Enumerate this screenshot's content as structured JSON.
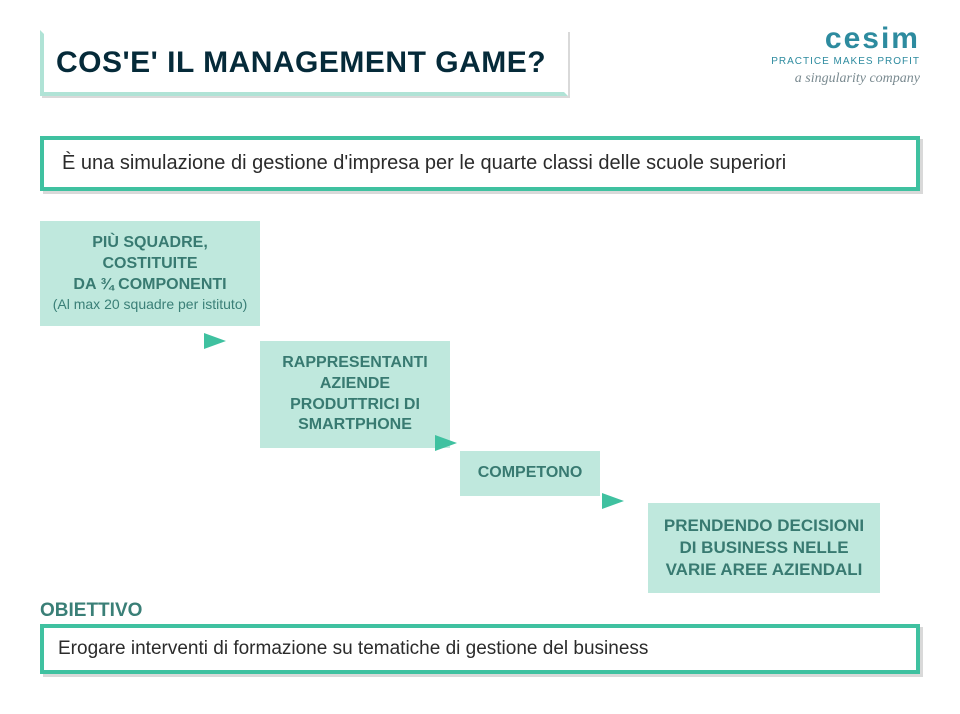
{
  "title": "COS'E' IL MANAGEMENT GAME?",
  "brand": {
    "name": "cesim",
    "tagline": "PRACTICE MAKES PROFIT",
    "sub": "a singularity company"
  },
  "subtitle": "È una simulazione di gestione d'impresa per le quarte classi delle scuole superiori",
  "flow": {
    "box1_line1": "PIÙ SQUADRE, COSTITUITE",
    "box1_line2": "DA ¾ COMPONENTI",
    "box1_line3": "(Al max 20 squadre per istituto)",
    "box2": "RAPPRESENTANTI AZIENDE PRODUTTRICI DI SMARTPHONE",
    "box3": "COMPETONO",
    "box4": "PRENDENDO DECISIONI DI BUSINESS NELLE VARIE AREE AZIENDALI"
  },
  "objective": {
    "label": "OBIETTIVO",
    "text": "Erogare interventi di formazione su tematiche di gestione del business"
  },
  "colors": {
    "accent": "#3fc1a0",
    "box_bg": "#bfe8dd",
    "box_text": "#387a71",
    "title_text": "#052a39",
    "brand": "#2d8b9f"
  }
}
